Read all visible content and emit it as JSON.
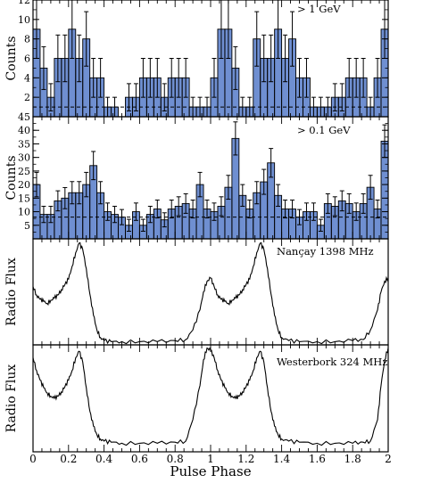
{
  "figure": {
    "x_axis_label": "Pulse Phase",
    "x_ticks": [
      "0",
      "0.2",
      "0.4",
      "0.6",
      "0.8",
      "1",
      "1.2",
      "1.4",
      "1.6",
      "1.8",
      "2"
    ]
  },
  "chart_data": [
    {
      "type": "bar",
      "panel_label": "> 1 GeV",
      "ylabel": "Counts",
      "xlim": [
        0,
        2
      ],
      "ylim": [
        0,
        12
      ],
      "yticks": [
        2,
        4,
        6,
        8,
        10,
        12
      ],
      "background_level": 1,
      "bar_color": "#6f8fd1",
      "bin_width": 0.04,
      "values": [
        9,
        5,
        2,
        6,
        6,
        9,
        6,
        8,
        4,
        4,
        1,
        1,
        0,
        2,
        2,
        4,
        4,
        4,
        2,
        4,
        4,
        4,
        1,
        1,
        1,
        4,
        9,
        9,
        5,
        1,
        1,
        8,
        6,
        6,
        9,
        6,
        8,
        4,
        4,
        1,
        1,
        1,
        2,
        2,
        4,
        4,
        4,
        1,
        4,
        9
      ],
      "errors": [
        3,
        2.2,
        1.4,
        2.4,
        2.4,
        3,
        2.4,
        2.8,
        2,
        2,
        1,
        1,
        0,
        1.4,
        1.4,
        2,
        2,
        2,
        1.4,
        2,
        2,
        2,
        1,
        1,
        1,
        2,
        3,
        3,
        2.2,
        1,
        1,
        2.8,
        2.4,
        2.4,
        3,
        2.4,
        2.8,
        2,
        2,
        1,
        1,
        1,
        1.4,
        1.4,
        2,
        2,
        2,
        1,
        2,
        3
      ]
    },
    {
      "type": "bar",
      "panel_label": "> 0.1 GeV",
      "ylabel": "Counts",
      "xlim": [
        0,
        2
      ],
      "ylim": [
        0,
        45
      ],
      "yticks": [
        5,
        10,
        15,
        20,
        25,
        30,
        35,
        40,
        45
      ],
      "background_level": 8,
      "bar_color": "#6f8fd1",
      "bin_width": 0.04,
      "values": [
        20,
        9,
        9,
        14,
        15,
        17,
        17,
        20,
        27,
        17,
        10,
        9,
        8,
        5,
        10,
        5,
        9,
        11,
        7,
        11,
        12,
        13,
        11,
        20,
        11,
        10,
        12,
        19,
        37,
        16,
        11,
        17,
        21,
        28,
        16,
        11,
        11,
        8,
        10,
        10,
        5,
        13,
        12,
        14,
        13,
        10,
        13,
        19,
        11,
        36
      ],
      "errors": [
        4.5,
        3,
        3,
        3.7,
        3.9,
        4.1,
        4.1,
        4.5,
        5.2,
        4.1,
        3.2,
        3,
        2.8,
        2.2,
        3.2,
        2.2,
        3,
        3.3,
        2.6,
        3.3,
        3.5,
        3.6,
        3.3,
        4.5,
        3.3,
        3.2,
        3.5,
        4.4,
        6.1,
        4,
        3.3,
        4.1,
        4.6,
        5.3,
        4,
        3.3,
        3.3,
        2.8,
        3.2,
        3.2,
        2.2,
        3.6,
        3.5,
        3.7,
        3.6,
        3.2,
        3.6,
        4.4,
        3.3,
        6
      ]
    },
    {
      "type": "line",
      "panel_label": "Nançay 1398 MHz",
      "ylabel": "Radio Flux",
      "xlim": [
        0,
        2
      ],
      "ylim": [
        0,
        1
      ],
      "x": [
        0,
        0.02,
        0.04,
        0.06,
        0.08,
        0.1,
        0.12,
        0.14,
        0.16,
        0.18,
        0.2,
        0.22,
        0.24,
        0.26,
        0.28,
        0.3,
        0.32,
        0.34,
        0.36,
        0.38,
        0.4,
        0.44,
        0.5,
        0.6,
        0.7,
        0.8,
        0.86,
        0.9,
        0.94,
        0.96,
        0.98,
        1.0,
        1.02,
        1.04,
        1.06,
        1.08,
        1.1,
        1.12,
        1.14,
        1.16,
        1.18,
        1.2,
        1.22,
        1.24,
        1.26,
        1.28,
        1.3,
        1.32,
        1.34,
        1.36,
        1.38,
        1.4,
        1.44,
        1.5,
        1.6,
        1.7,
        1.8,
        1.86,
        1.9,
        1.94,
        1.96,
        1.98,
        2.0
      ],
      "y": [
        0.55,
        0.47,
        0.43,
        0.41,
        0.39,
        0.42,
        0.44,
        0.47,
        0.52,
        0.57,
        0.62,
        0.74,
        0.87,
        0.96,
        0.9,
        0.72,
        0.48,
        0.28,
        0.14,
        0.07,
        0.04,
        0.03,
        0.03,
        0.03,
        0.03,
        0.04,
        0.05,
        0.14,
        0.33,
        0.5,
        0.6,
        0.63,
        0.55,
        0.47,
        0.43,
        0.41,
        0.39,
        0.42,
        0.44,
        0.47,
        0.52,
        0.57,
        0.62,
        0.74,
        0.87,
        0.96,
        0.9,
        0.72,
        0.48,
        0.28,
        0.14,
        0.07,
        0.04,
        0.03,
        0.03,
        0.03,
        0.04,
        0.05,
        0.14,
        0.33,
        0.5,
        0.6,
        0.63
      ]
    },
    {
      "type": "line",
      "panel_label": "Westerbork 324 MHz",
      "ylabel": "Radio Flux",
      "xlim": [
        0,
        2
      ],
      "ylim": [
        0,
        1
      ],
      "x": [
        0,
        0.02,
        0.04,
        0.06,
        0.08,
        0.1,
        0.12,
        0.14,
        0.16,
        0.18,
        0.2,
        0.22,
        0.24,
        0.26,
        0.28,
        0.3,
        0.32,
        0.34,
        0.36,
        0.38,
        0.4,
        0.44,
        0.5,
        0.6,
        0.7,
        0.8,
        0.86,
        0.9,
        0.94,
        0.96,
        0.98,
        1.0,
        1.02,
        1.04,
        1.06,
        1.08,
        1.1,
        1.12,
        1.14,
        1.16,
        1.18,
        1.2,
        1.22,
        1.24,
        1.26,
        1.28,
        1.3,
        1.32,
        1.34,
        1.36,
        1.38,
        1.4,
        1.44,
        1.5,
        1.6,
        1.7,
        1.8,
        1.86,
        1.9,
        1.94,
        1.96,
        1.98,
        2.0
      ],
      "y": [
        0.88,
        0.76,
        0.67,
        0.6,
        0.55,
        0.52,
        0.5,
        0.52,
        0.56,
        0.61,
        0.67,
        0.76,
        0.88,
        0.94,
        0.84,
        0.6,
        0.38,
        0.24,
        0.16,
        0.12,
        0.1,
        0.09,
        0.08,
        0.08,
        0.08,
        0.09,
        0.1,
        0.3,
        0.62,
        0.86,
        0.97,
        0.95,
        0.88,
        0.76,
        0.67,
        0.6,
        0.55,
        0.52,
        0.5,
        0.52,
        0.56,
        0.61,
        0.67,
        0.76,
        0.88,
        0.94,
        0.84,
        0.6,
        0.38,
        0.24,
        0.16,
        0.12,
        0.1,
        0.09,
        0.08,
        0.08,
        0.08,
        0.09,
        0.1,
        0.3,
        0.62,
        0.86,
        0.97
      ]
    }
  ]
}
